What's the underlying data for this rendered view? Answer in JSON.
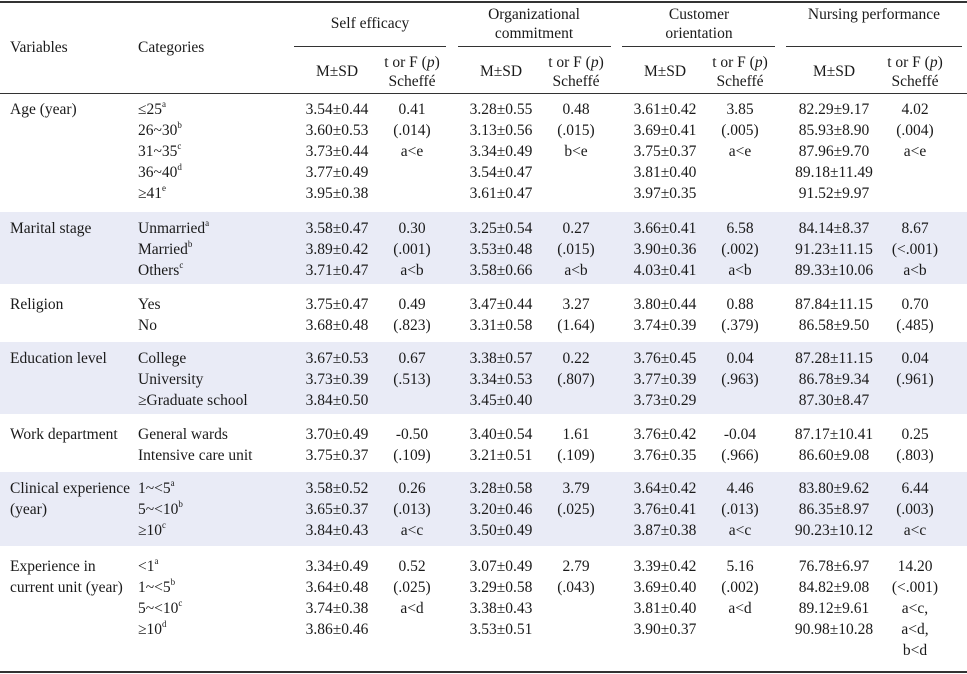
{
  "table": {
    "headers": {
      "variables": "Variables",
      "categories": "Categories",
      "groups": [
        "Self efficacy",
        "Organizational commitment",
        "Customer orientation",
        "Nursing performance"
      ],
      "msd": "M±SD",
      "test_prefix": "t or F (",
      "test_p": "p",
      "test_suffix": ")",
      "scheffe": "Scheffé"
    },
    "rows": [
      {
        "variable": "Age (year)",
        "categories": [
          {
            "text": "≤25",
            "sup": "a"
          },
          {
            "text": "26~30",
            "sup": "b"
          },
          {
            "text": "31~35",
            "sup": "c"
          },
          {
            "text": "36~40",
            "sup": "d"
          },
          {
            "text": "≥41",
            "sup": "e"
          }
        ],
        "self_efficacy": {
          "msd": [
            "3.54±0.44",
            "3.60±0.53",
            "3.73±0.44",
            "3.77±0.49",
            "3.95±0.38"
          ],
          "test": [
            "0.41",
            "(.014)",
            "a<e"
          ]
        },
        "org_commitment": {
          "msd": [
            "3.28±0.55",
            "3.13±0.56",
            "3.34±0.49",
            "3.54±0.47",
            "3.61±0.47"
          ],
          "test": [
            "0.48",
            "(.015)",
            "b<e"
          ]
        },
        "customer_orientation": {
          "msd": [
            "3.61±0.42",
            "3.69±0.41",
            "3.75±0.37",
            "3.81±0.40",
            "3.97±0.35"
          ],
          "test": [
            "3.85",
            "(.005)",
            "a<e"
          ]
        },
        "nursing_performance": {
          "msd": [
            "82.29±9.17",
            "85.93±8.90",
            "87.96±9.70",
            "89.18±11.49",
            "91.52±9.97"
          ],
          "test": [
            "4.02",
            "(.004)",
            "a<e"
          ]
        }
      },
      {
        "variable": "Marital stage",
        "categories": [
          {
            "text": "Unmarried",
            "sup": "a"
          },
          {
            "text": "Married",
            "sup": "b"
          },
          {
            "text": "Others",
            "sup": "c"
          }
        ],
        "self_efficacy": {
          "msd": [
            "3.58±0.47",
            "3.89±0.42",
            "3.71±0.47"
          ],
          "test": [
            "0.30",
            "(.001)",
            "a<b"
          ]
        },
        "org_commitment": {
          "msd": [
            "3.25±0.54",
            "3.53±0.48",
            "3.58±0.66"
          ],
          "test": [
            "0.27",
            "(.015)",
            "a<b"
          ]
        },
        "customer_orientation": {
          "msd": [
            "3.66±0.41",
            "3.90±0.36",
            "4.03±0.41"
          ],
          "test": [
            "6.58",
            "(.002)",
            "a<b"
          ]
        },
        "nursing_performance": {
          "msd": [
            "84.14±8.37",
            "91.23±11.15",
            "89.33±10.06"
          ],
          "test": [
            "8.67",
            "(<.001)",
            "a<b"
          ]
        }
      },
      {
        "variable": "Religion",
        "categories": [
          {
            "text": "Yes",
            "sup": ""
          },
          {
            "text": "No",
            "sup": ""
          }
        ],
        "self_efficacy": {
          "msd": [
            "3.75±0.47",
            "3.68±0.48"
          ],
          "test": [
            "0.49",
            "(.823)"
          ]
        },
        "org_commitment": {
          "msd": [
            "3.47±0.44",
            "3.31±0.58"
          ],
          "test": [
            "3.27",
            "(1.64)"
          ]
        },
        "customer_orientation": {
          "msd": [
            "3.80±0.44",
            "3.74±0.39"
          ],
          "test": [
            "0.88",
            "(.379)"
          ]
        },
        "nursing_performance": {
          "msd": [
            "87.84±11.15",
            "86.58±9.50"
          ],
          "test": [
            "0.70",
            "(.485)"
          ]
        }
      },
      {
        "variable": "Education level",
        "categories": [
          {
            "text": "College",
            "sup": ""
          },
          {
            "text": "University",
            "sup": ""
          },
          {
            "text": "≥Graduate school",
            "sup": ""
          }
        ],
        "self_efficacy": {
          "msd": [
            "3.67±0.53",
            "3.73±0.39",
            "3.84±0.50"
          ],
          "test": [
            "0.67",
            "(.513)"
          ]
        },
        "org_commitment": {
          "msd": [
            "3.38±0.57",
            "3.34±0.53",
            "3.45±0.40"
          ],
          "test": [
            "0.22",
            "(.807)"
          ]
        },
        "customer_orientation": {
          "msd": [
            "3.76±0.45",
            "3.77±0.39",
            "3.73±0.29"
          ],
          "test": [
            "0.04",
            "(.963)"
          ]
        },
        "nursing_performance": {
          "msd": [
            "87.28±11.15",
            "86.78±9.34",
            "87.30±8.47"
          ],
          "test": [
            "0.04",
            "(.961)"
          ]
        }
      },
      {
        "variable": "Work department",
        "categories": [
          {
            "text": "General wards",
            "sup": ""
          },
          {
            "text": "Intensive care unit",
            "sup": ""
          }
        ],
        "self_efficacy": {
          "msd": [
            "3.70±0.49",
            "3.75±0.37"
          ],
          "test": [
            "-0.50",
            "(.109)"
          ]
        },
        "org_commitment": {
          "msd": [
            "3.40±0.54",
            "3.21±0.51"
          ],
          "test": [
            "1.61",
            "(.109)"
          ]
        },
        "customer_orientation": {
          "msd": [
            "3.76±0.42",
            "3.76±0.35"
          ],
          "test": [
            "-0.04",
            "(.966)"
          ]
        },
        "nursing_performance": {
          "msd": [
            "87.17±10.41",
            "86.60±9.08"
          ],
          "test": [
            "0.25",
            "(.803)"
          ]
        }
      },
      {
        "variable": "Clinical experience (year)",
        "categories": [
          {
            "text": "1~<5",
            "sup": "a"
          },
          {
            "text": "5~<10",
            "sup": "b"
          },
          {
            "text": "≥10",
            "sup": "c"
          }
        ],
        "self_efficacy": {
          "msd": [
            "3.58±0.52",
            "3.65±0.37",
            "3.84±0.43"
          ],
          "test": [
            "0.26",
            "(.013)",
            "a<c"
          ]
        },
        "org_commitment": {
          "msd": [
            "3.28±0.58",
            "3.20±0.46",
            "3.50±0.49"
          ],
          "test": [
            "3.79",
            "(.025)"
          ]
        },
        "customer_orientation": {
          "msd": [
            "3.64±0.42",
            "3.76±0.41",
            "3.87±0.38"
          ],
          "test": [
            "4.46",
            "(.013)",
            "a<c"
          ]
        },
        "nursing_performance": {
          "msd": [
            "83.80±9.62",
            "86.35±8.97",
            "90.23±10.12"
          ],
          "test": [
            "6.44",
            "(.003)",
            "a<c"
          ]
        }
      },
      {
        "variable": "Experience in current unit (year)",
        "categories": [
          {
            "text": "<1",
            "sup": "a"
          },
          {
            "text": "1~<5",
            "sup": "b"
          },
          {
            "text": "5~<10",
            "sup": "c"
          },
          {
            "text": "≥10",
            "sup": "d"
          }
        ],
        "self_efficacy": {
          "msd": [
            "3.34±0.49",
            "3.64±0.48",
            "3.74±0.38",
            "3.86±0.46"
          ],
          "test": [
            "0.52",
            "(.025)",
            "a<d"
          ]
        },
        "org_commitment": {
          "msd": [
            "3.07±0.49",
            "3.29±0.58",
            "3.38±0.43",
            "3.53±0.51"
          ],
          "test": [
            "2.79",
            "(.043)"
          ]
        },
        "customer_orientation": {
          "msd": [
            "3.39±0.42",
            "3.69±0.40",
            "3.81±0.40",
            "3.90±0.37"
          ],
          "test": [
            "5.16",
            "(.002)",
            "a<d"
          ]
        },
        "nursing_performance": {
          "msd": [
            "76.78±6.97",
            "84.82±9.08",
            "89.12±9.61",
            "90.98±10.28"
          ],
          "test": [
            "14.20",
            "(<.001)",
            "a<c,",
            "a<d,",
            "b<d"
          ]
        }
      }
    ]
  }
}
